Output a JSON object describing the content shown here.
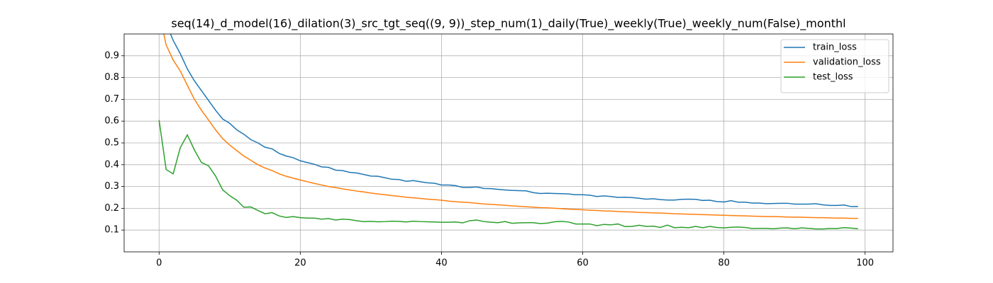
{
  "chart_data": {
    "type": "line",
    "title": "seq(14)_d_model(16)_dilation(3)_src_tgt_seq((9, 9))_step_num(1)_daily(True)_weekly(True)_weekly_num(False)_monthl",
    "x": [
      0,
      1,
      2,
      3,
      4,
      5,
      6,
      7,
      8,
      9,
      10,
      11,
      12,
      13,
      14,
      15,
      16,
      17,
      18,
      19,
      20,
      21,
      22,
      23,
      24,
      25,
      26,
      27,
      28,
      29,
      30,
      31,
      32,
      33,
      34,
      35,
      36,
      37,
      38,
      39,
      40,
      41,
      42,
      43,
      44,
      45,
      46,
      47,
      48,
      49,
      50,
      51,
      52,
      53,
      54,
      55,
      56,
      57,
      58,
      59,
      60,
      61,
      62,
      63,
      64,
      65,
      66,
      67,
      68,
      69,
      70,
      71,
      72,
      73,
      74,
      75,
      76,
      77,
      78,
      79,
      80,
      81,
      82,
      83,
      84,
      85,
      86,
      87,
      88,
      89,
      90,
      91,
      92,
      93,
      94,
      95,
      96,
      97,
      98,
      99
    ],
    "series": [
      {
        "name": "train_loss",
        "color": "#1f77b4",
        "values": [
          1.15,
          1.05,
          0.97,
          0.91,
          0.84,
          0.785,
          0.74,
          0.695,
          0.65,
          0.61,
          0.59,
          0.56,
          0.54,
          0.515,
          0.5,
          0.48,
          0.473,
          0.452,
          0.44,
          0.432,
          0.418,
          0.41,
          0.402,
          0.39,
          0.388,
          0.375,
          0.373,
          0.365,
          0.362,
          0.355,
          0.348,
          0.347,
          0.34,
          0.333,
          0.332,
          0.324,
          0.327,
          0.322,
          0.317,
          0.315,
          0.307,
          0.307,
          0.304,
          0.296,
          0.296,
          0.298,
          0.291,
          0.29,
          0.287,
          0.284,
          0.282,
          0.281,
          0.28,
          0.272,
          0.268,
          0.269,
          0.268,
          0.267,
          0.266,
          0.262,
          0.262,
          0.26,
          0.254,
          0.257,
          0.254,
          0.25,
          0.251,
          0.249,
          0.246,
          0.242,
          0.244,
          0.24,
          0.238,
          0.238,
          0.241,
          0.242,
          0.241,
          0.236,
          0.237,
          0.231,
          0.229,
          0.235,
          0.228,
          0.228,
          0.224,
          0.224,
          0.221,
          0.222,
          0.223,
          0.223,
          0.219,
          0.219,
          0.219,
          0.221,
          0.216,
          0.213,
          0.213,
          0.215,
          0.208,
          0.208
        ]
      },
      {
        "name": "validation_loss",
        "color": "#ff7f0e",
        "values": [
          1.1,
          0.95,
          0.88,
          0.83,
          0.765,
          0.7,
          0.65,
          0.605,
          0.56,
          0.52,
          0.49,
          0.465,
          0.44,
          0.42,
          0.4,
          0.385,
          0.373,
          0.358,
          0.347,
          0.338,
          0.33,
          0.322,
          0.314,
          0.307,
          0.3,
          0.295,
          0.289,
          0.284,
          0.279,
          0.275,
          0.27,
          0.266,
          0.262,
          0.258,
          0.255,
          0.251,
          0.248,
          0.245,
          0.242,
          0.24,
          0.237,
          0.233,
          0.23,
          0.228,
          0.226,
          0.223,
          0.22,
          0.218,
          0.216,
          0.214,
          0.211,
          0.209,
          0.207,
          0.205,
          0.203,
          0.202,
          0.2,
          0.198,
          0.196,
          0.195,
          0.193,
          0.191,
          0.19,
          0.188,
          0.187,
          0.185,
          0.184,
          0.183,
          0.181,
          0.18,
          0.179,
          0.178,
          0.177,
          0.175,
          0.174,
          0.173,
          0.172,
          0.171,
          0.17,
          0.169,
          0.168,
          0.167,
          0.166,
          0.165,
          0.164,
          0.163,
          0.162,
          0.162,
          0.161,
          0.16,
          0.159,
          0.159,
          0.158,
          0.157,
          0.157,
          0.156,
          0.155,
          0.155,
          0.154,
          0.154
        ]
      },
      {
        "name": "test_loss",
        "color": "#2ca02c",
        "values": [
          0.605,
          0.378,
          0.358,
          0.478,
          0.537,
          0.468,
          0.41,
          0.395,
          0.348,
          0.285,
          0.258,
          0.237,
          0.205,
          0.206,
          0.19,
          0.175,
          0.18,
          0.165,
          0.158,
          0.162,
          0.157,
          0.155,
          0.155,
          0.15,
          0.153,
          0.146,
          0.15,
          0.148,
          0.143,
          0.139,
          0.14,
          0.138,
          0.139,
          0.141,
          0.14,
          0.137,
          0.141,
          0.139,
          0.138,
          0.137,
          0.136,
          0.136,
          0.137,
          0.133,
          0.143,
          0.146,
          0.139,
          0.136,
          0.134,
          0.139,
          0.131,
          0.133,
          0.134,
          0.134,
          0.13,
          0.132,
          0.138,
          0.14,
          0.137,
          0.128,
          0.128,
          0.128,
          0.12,
          0.126,
          0.124,
          0.128,
          0.116,
          0.117,
          0.122,
          0.117,
          0.118,
          0.112,
          0.123,
          0.111,
          0.113,
          0.111,
          0.117,
          0.111,
          0.117,
          0.112,
          0.11,
          0.113,
          0.114,
          0.112,
          0.107,
          0.108,
          0.108,
          0.106,
          0.109,
          0.11,
          0.106,
          0.11,
          0.108,
          0.105,
          0.105,
          0.107,
          0.107,
          0.111,
          0.109,
          0.106
        ]
      }
    ],
    "xlim": [
      -4.95,
      103.95
    ],
    "ylim": [
      0,
      1
    ],
    "xticks": [
      0,
      20,
      40,
      60,
      80,
      100
    ],
    "yticks": [
      0.1,
      0.2,
      0.3,
      0.4,
      0.5,
      0.6,
      0.7,
      0.8,
      0.9
    ],
    "grid": true,
    "legend": "upper right"
  }
}
